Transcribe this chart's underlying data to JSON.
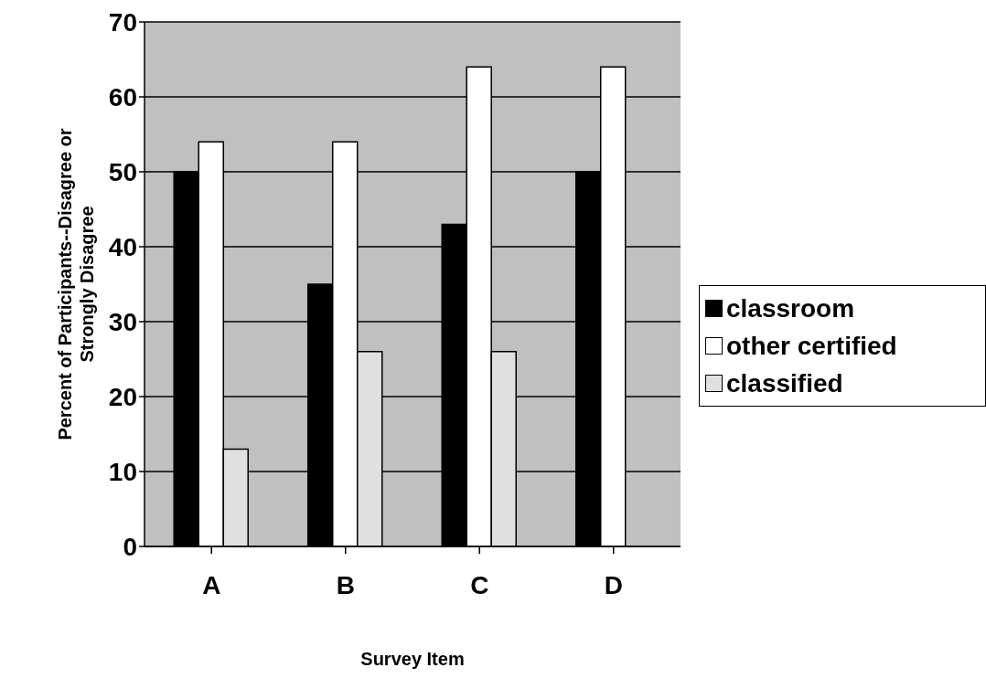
{
  "chart_data": {
    "type": "bar",
    "xlabel": "Survey Item",
    "ylabel": "Percent of Participants--Disagree or Strongly Disagree",
    "categories": [
      "A",
      "B",
      "C",
      "D"
    ],
    "series": [
      {
        "name": "classroom",
        "color": "#000000",
        "values": [
          50,
          35,
          43,
          50
        ]
      },
      {
        "name": "other certified",
        "color": "#ffffff",
        "values": [
          54,
          54,
          64,
          64
        ]
      },
      {
        "name": "classified",
        "color": "#e0e0e0",
        "values": [
          13,
          26,
          26,
          null
        ]
      }
    ],
    "ylim": [
      0,
      70
    ],
    "yticks": [
      0,
      10,
      20,
      30,
      40,
      50,
      60,
      70
    ],
    "grid": "y",
    "legend": "right"
  }
}
